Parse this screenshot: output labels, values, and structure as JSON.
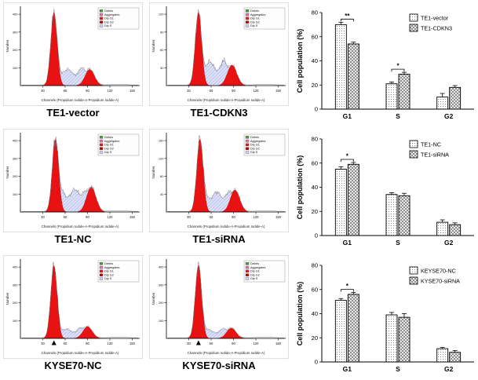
{
  "flow_common": {
    "xlabel": "Channels (Propidium Iodide-A-Propidium Iodide-A)",
    "ylabel": "Number",
    "legend": [
      {
        "label": "Debris",
        "color": "#4a9a3c"
      },
      {
        "label": "Aggregates",
        "color": "#e36bb0"
      },
      {
        "label": "Dip G1",
        "color": "#e31a1a"
      },
      {
        "label": "Dip G2",
        "color": "#c40000"
      },
      {
        "label": "Dip S",
        "color": "#ccd2f5"
      }
    ],
    "colors": {
      "g1_fill": "#e81212",
      "g2_fill": "#e81212",
      "s_fill": "#dde1f8",
      "s_hatch": "#8a93d8",
      "curve": "#777777"
    }
  },
  "flow_panels": [
    {
      "title": "TE1-vector",
      "g1_x": 45,
      "g1_h": 1.0,
      "g2_x": 93,
      "g2_h": 0.22,
      "s_h": 0.18,
      "x_max": 160,
      "x_ticks": [
        30,
        60,
        90,
        120,
        150
      ],
      "y_ticks": [
        "100",
        "200",
        "300",
        "400"
      ],
      "marker": false
    },
    {
      "title": "TE1-CDKN3",
      "g1_x": 43,
      "g1_h": 1.0,
      "g2_x": 88,
      "g2_h": 0.28,
      "s_h": 0.26,
      "x_max": 160,
      "x_ticks": [
        30,
        60,
        90,
        120,
        150
      ],
      "y_ticks": [
        "30",
        "60",
        "90",
        "120"
      ],
      "marker": false
    },
    {
      "title": "TE1-NC",
      "g1_x": 47,
      "g1_h": 1.0,
      "g2_x": 95,
      "g2_h": 0.34,
      "s_h": 0.25,
      "x_max": 160,
      "x_ticks": [
        30,
        60,
        90,
        120,
        150
      ],
      "y_ticks": [
        "100",
        "200",
        "300",
        "400"
      ],
      "marker": false
    },
    {
      "title": "TE1-siRNA",
      "g1_x": 45,
      "g1_h": 1.0,
      "g2_x": 92,
      "g2_h": 0.3,
      "s_h": 0.22,
      "x_max": 160,
      "x_ticks": [
        30,
        60,
        90,
        120,
        150
      ],
      "y_ticks": [
        "40",
        "80",
        "120",
        "160"
      ],
      "marker": false
    },
    {
      "title": "KYSE70-NC",
      "g1_x": 45,
      "g1_h": 1.0,
      "g2_x": 90,
      "g2_h": 0.16,
      "s_h": 0.1,
      "x_max": 160,
      "x_ticks": [
        30,
        60,
        90,
        120,
        150
      ],
      "y_ticks": [
        "100",
        "200",
        "300",
        "400"
      ],
      "marker": true
    },
    {
      "title": "KYSE70-siRNA",
      "g1_x": 43,
      "g1_h": 1.0,
      "g2_x": 87,
      "g2_h": 0.14,
      "s_h": 0.09,
      "x_max": 160,
      "x_ticks": [
        30,
        60,
        90,
        120,
        150
      ],
      "y_ticks": [
        "100",
        "200",
        "300",
        "400"
      ],
      "marker": true
    }
  ],
  "chart_data": [
    {
      "type": "bar",
      "title": "",
      "ylabel": "Cell population (%)",
      "ylim": [
        0,
        80
      ],
      "yticks": [
        0,
        20,
        40,
        60,
        80
      ],
      "categories": [
        "G1",
        "S",
        "G2"
      ],
      "legend_position": "top-right",
      "series": [
        {
          "name": "TE1-vector",
          "fill_style": "stipple",
          "values": [
            70,
            21,
            10
          ],
          "errors": [
            2,
            1.5,
            3
          ]
        },
        {
          "name": "TE1-CDKN3",
          "fill_style": "checker",
          "values": [
            54,
            29,
            18
          ],
          "errors": [
            1.5,
            1.5,
            1.5
          ]
        }
      ],
      "significance": [
        {
          "category_index": 0,
          "label": "**"
        },
        {
          "category_index": 1,
          "label": "*"
        }
      ]
    },
    {
      "type": "bar",
      "title": "",
      "ylabel": "Cell population (%)",
      "ylim": [
        0,
        80
      ],
      "yticks": [
        0,
        20,
        40,
        60,
        80
      ],
      "categories": [
        "G1",
        "S",
        "G2"
      ],
      "legend_position": "top-right",
      "series": [
        {
          "name": "TE1-NC",
          "fill_style": "stipple",
          "values": [
            55,
            34,
            11
          ],
          "errors": [
            2,
            1.5,
            2
          ]
        },
        {
          "name": "TE1-siRNA",
          "fill_style": "checker",
          "values": [
            59,
            33,
            9
          ],
          "errors": [
            1.5,
            2,
            1.5
          ]
        }
      ],
      "significance": [
        {
          "category_index": 0,
          "label": "*"
        }
      ]
    },
    {
      "type": "bar",
      "title": "",
      "ylabel": "Cell population (%)",
      "ylim": [
        0,
        80
      ],
      "yticks": [
        0,
        20,
        40,
        60,
        80
      ],
      "categories": [
        "G1",
        "S",
        "G2"
      ],
      "legend_position": "top-right",
      "series": [
        {
          "name": "KEYSE70-NC",
          "fill_style": "stipple",
          "values": [
            51,
            39,
            11
          ],
          "errors": [
            1.5,
            2,
            1
          ]
        },
        {
          "name": "KYSE70-siRNA",
          "fill_style": "checker",
          "values": [
            56,
            37,
            8
          ],
          "errors": [
            1.5,
            3,
            1.5
          ]
        }
      ],
      "significance": [
        {
          "category_index": 0,
          "label": "*"
        }
      ]
    }
  ]
}
